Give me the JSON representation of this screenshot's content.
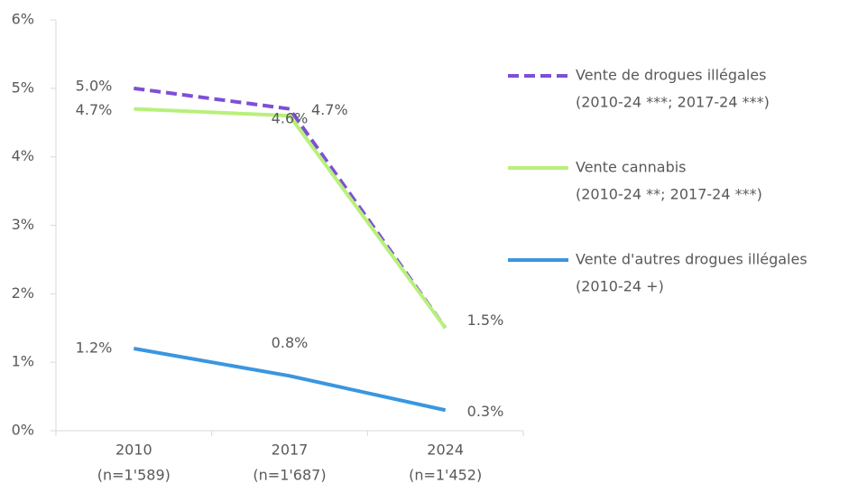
{
  "chart_data": {
    "type": "line",
    "categories": [
      "2010",
      "2017",
      "2024"
    ],
    "sample_sizes": [
      "(n=1'589)",
      "(n=1'687)",
      "(n=1'452)"
    ],
    "ylim": [
      0,
      6
    ],
    "yticks": [
      {
        "value": 0,
        "label": "0%"
      },
      {
        "value": 1,
        "label": "1%"
      },
      {
        "value": 2,
        "label": "2%"
      },
      {
        "value": 3,
        "label": "3%"
      },
      {
        "value": 4,
        "label": "4%"
      },
      {
        "value": 5,
        "label": "5%"
      },
      {
        "value": 6,
        "label": "6%"
      }
    ],
    "grid": false,
    "legend": "right",
    "series": [
      {
        "name": "Vente de drogues illégales",
        "legend_note": "(2010-24 ***; 2017-24 ***)",
        "color": "#7e4fd6",
        "dashed": true,
        "values": [
          5.0,
          4.7,
          1.5
        ],
        "value_labels": [
          "5.0%",
          "4.7%",
          null
        ]
      },
      {
        "name": "Vente cannabis",
        "legend_note": "(2010-24 **; 2017-24 ***)",
        "color": "#b8f07a",
        "dashed": false,
        "values": [
          4.7,
          4.6,
          1.5
        ],
        "value_labels": [
          "4.7%",
          "4.6%",
          "1.5%"
        ]
      },
      {
        "name": "Vente d'autres drogues illégales",
        "legend_note": "(2010-24 +)",
        "color": "#3a96e0",
        "dashed": false,
        "values": [
          1.2,
          0.8,
          0.3
        ],
        "value_labels": [
          "1.2%",
          "0.8%",
          "0.3%"
        ]
      }
    ]
  }
}
